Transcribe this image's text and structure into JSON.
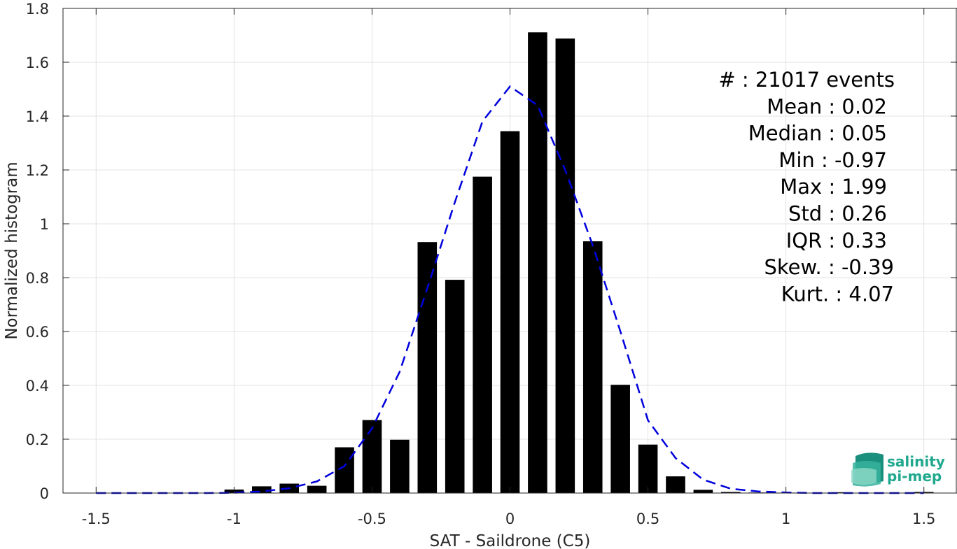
{
  "chart_data": {
    "type": "bar",
    "xlabel": "SAT - Saildrone (C5)",
    "ylabel": "Normalized histogram",
    "xlim": [
      -1.62,
      1.62
    ],
    "ylim": [
      0,
      1.8
    ],
    "x_ticks": [
      -1.5,
      -1,
      -0.5,
      0,
      0.5,
      1,
      1.5
    ],
    "x_tick_labels": [
      "-1.5",
      "-1",
      "-0.5",
      "0",
      "0.5",
      "1",
      "1.5"
    ],
    "y_ticks": [
      0,
      0.2,
      0.4,
      0.6,
      0.8,
      1,
      1.2,
      1.4,
      1.6,
      1.8
    ],
    "y_tick_labels": [
      "0",
      "0.2",
      "0.4",
      "0.6",
      "0.8",
      "1",
      "1.2",
      "1.4",
      "1.6",
      "1.8"
    ],
    "grid": true,
    "bar_width": 0.07,
    "bar_color": "#000000",
    "fit_color": "#0000dd",
    "series": [
      {
        "kind": "bars",
        "x": [
          -0.9999,
          -0.8999,
          -0.7999,
          -0.6999,
          -0.5999,
          -0.4999,
          -0.3999,
          -0.2999,
          -0.1999,
          -0.0999,
          0.0,
          0.1,
          0.2,
          0.3,
          0.4,
          0.5,
          0.6,
          0.7,
          0.8,
          0.9,
          1.0,
          1.1,
          1.2,
          1.3,
          1.4,
          1.5
        ],
        "values": [
          0.013,
          0.025,
          0.035,
          0.027,
          0.17,
          0.271,
          0.198,
          0.932,
          0.792,
          1.175,
          1.344,
          1.711,
          1.688,
          0.935,
          0.402,
          0.18,
          0.062,
          0.012,
          0.004,
          0.002,
          0.0015,
          0.001,
          0.003,
          0.001,
          0.001,
          0.004
        ]
      },
      {
        "kind": "fit-line",
        "x": [
          -1.5,
          -1.4,
          -1.3,
          -1.2,
          -1.1,
          -1.0,
          -0.9,
          -0.8,
          -0.7,
          -0.6,
          -0.5,
          -0.4,
          -0.3,
          -0.2,
          -0.1,
          0.0,
          0.1,
          0.2,
          0.3,
          0.4,
          0.5,
          0.6,
          0.7,
          0.8,
          0.9,
          1.0,
          1.1,
          1.2,
          1.3,
          1.4,
          1.5
        ],
        "values": [
          0.0,
          0.0,
          0.0,
          0.0,
          0.0,
          0.001,
          0.006,
          0.018,
          0.043,
          0.1,
          0.24,
          0.45,
          0.76,
          1.08,
          1.38,
          1.51,
          1.44,
          1.2,
          0.92,
          0.6,
          0.27,
          0.13,
          0.05,
          0.016,
          0.006,
          0.002,
          0.0,
          0.0,
          0.0,
          0.0,
          0.0
        ]
      }
    ],
    "annotations": [
      "#  : 21017 events",
      "Mean : 0.02",
      "Median : 0.05",
      "Min : -0.97",
      "Max : 1.99",
      "Std : 0.26",
      "IQR : 0.33",
      "Skew. : -0.39",
      "Kurt. : 4.07"
    ]
  },
  "logo": {
    "line1": "salinity",
    "line2": "pi-mep"
  }
}
